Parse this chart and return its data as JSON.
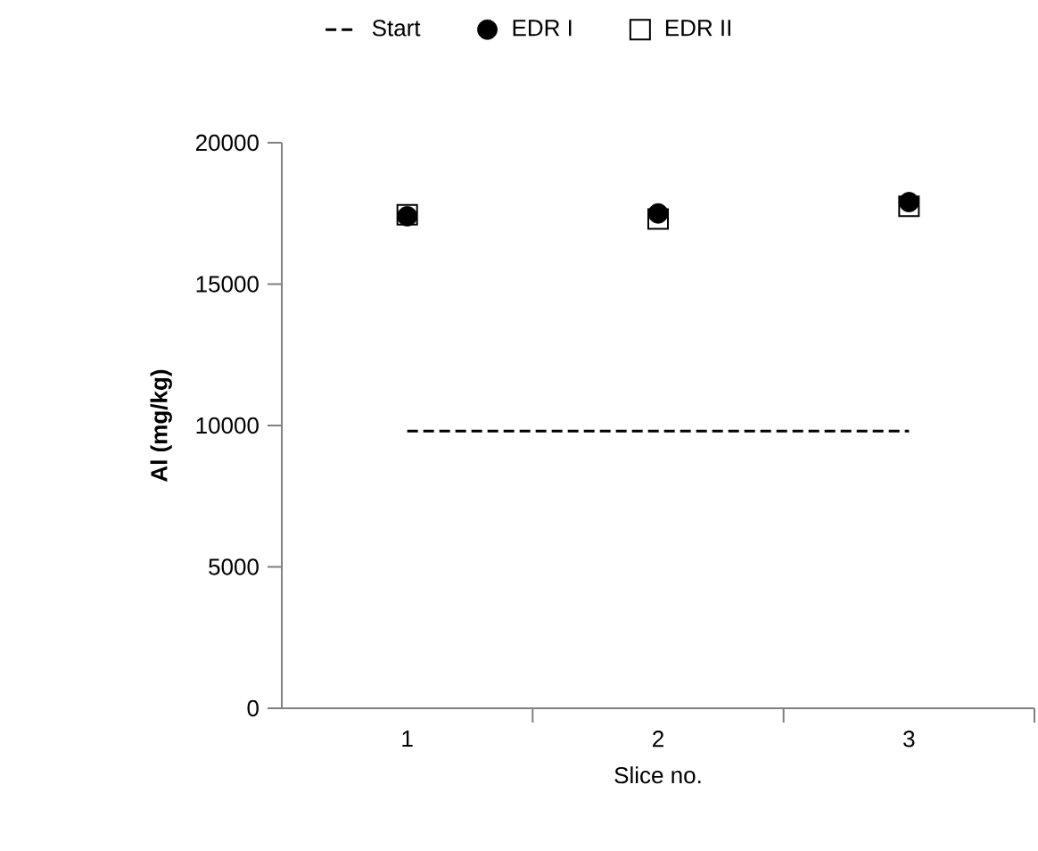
{
  "chart_data": {
    "type": "scatter",
    "xlabel": "Slice no.",
    "ylabel": "**Al (mg/kg)**",
    "categories": [
      "1",
      "2",
      "3"
    ],
    "series": [
      {
        "name": "Start",
        "type": "line",
        "color": "#000000",
        "line_style": "dashed",
        "marker": "none",
        "values": [
          9800,
          9800,
          9800
        ]
      },
      {
        "name": "EDR I",
        "type": "scatter",
        "color": "#000000",
        "marker": "circle",
        "values": [
          17400,
          17500,
          17900
        ]
      },
      {
        "name": "EDR II",
        "type": "scatter",
        "color": "#000000",
        "marker": "square",
        "values": [
          17450,
          17300,
          17750
        ]
      }
    ],
    "ylim": [
      0,
      20000
    ],
    "yticks": [
      0,
      5000,
      10000,
      15000,
      20000
    ],
    "grid": false,
    "legend": "top"
  }
}
